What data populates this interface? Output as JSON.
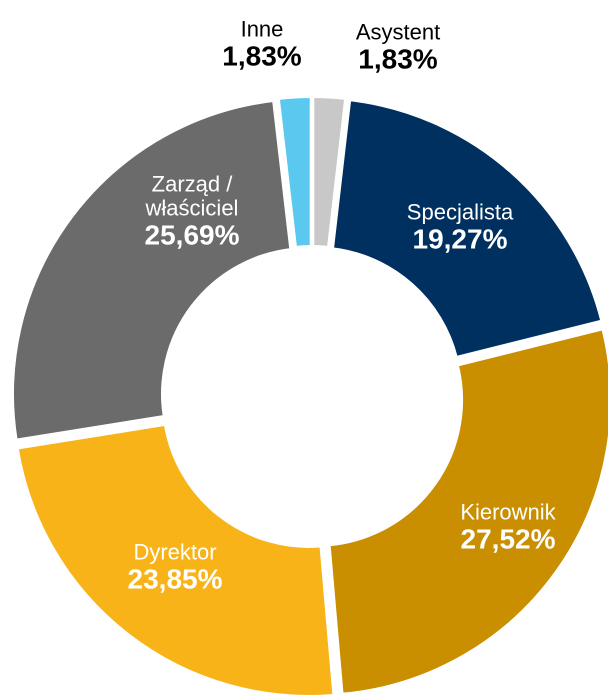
{
  "chart_data": {
    "type": "donut",
    "categories": [
      "Asystent",
      "Specjalista",
      "Kierownik",
      "Dyrektor",
      "Zarząd / właściciel",
      "Inne"
    ],
    "values": [
      1.83,
      19.27,
      27.52,
      23.85,
      25.69,
      1.83
    ],
    "value_labels": [
      "1,83%",
      "19,27%",
      "27,52%",
      "23,85%",
      "25,69%",
      "1,83%"
    ],
    "colors": [
      "#c8c8c8",
      "#00305f",
      "#c98f00",
      "#f8b319",
      "#6b6b6b",
      "#5bc8ef"
    ]
  }
}
